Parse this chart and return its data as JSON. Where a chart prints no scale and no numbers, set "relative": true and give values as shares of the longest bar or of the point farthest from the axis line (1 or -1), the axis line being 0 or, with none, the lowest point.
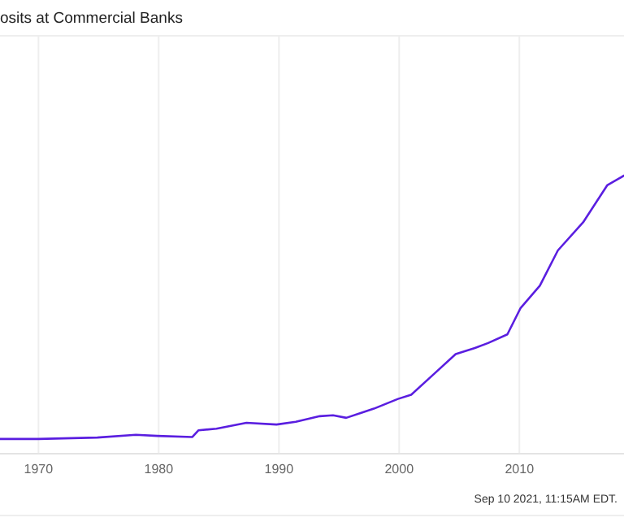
{
  "chart_data": {
    "type": "line",
    "title": "osits at Commercial Banks",
    "relative": true,
    "x": [
      1966.8,
      1970,
      1974.9,
      1978.1,
      1979.9,
      1982.8,
      1983.3,
      1984.8,
      1987.3,
      1989.8,
      1991.4,
      1993.4,
      1994.5,
      1995.6,
      1997.9,
      1999.9,
      2001.0,
      2002.9,
      2004.7,
      2006.3,
      2007.4,
      2009.0,
      2010.1,
      2011.7,
      2013.2,
      2015.3,
      2017.3,
      2018.7
    ],
    "series": [
      {
        "color": "#5a1ee0",
        "values": [
          0.053,
          0.053,
          0.058,
          0.068,
          0.064,
          0.06,
          0.084,
          0.09,
          0.111,
          0.105,
          0.115,
          0.135,
          0.138,
          0.129,
          0.162,
          0.197,
          0.212,
          0.287,
          0.358,
          0.38,
          0.398,
          0.429,
          0.524,
          0.604,
          0.731,
          0.832,
          0.965,
          1.0
        ]
      }
    ],
    "xlim": [
      1966.8,
      2018.7
    ],
    "xticks": [
      1970,
      1980,
      1990,
      2000,
      2010
    ],
    "grid": "x",
    "annotations": [
      "Sep 10 2021, 11:15AM EDT."
    ]
  }
}
